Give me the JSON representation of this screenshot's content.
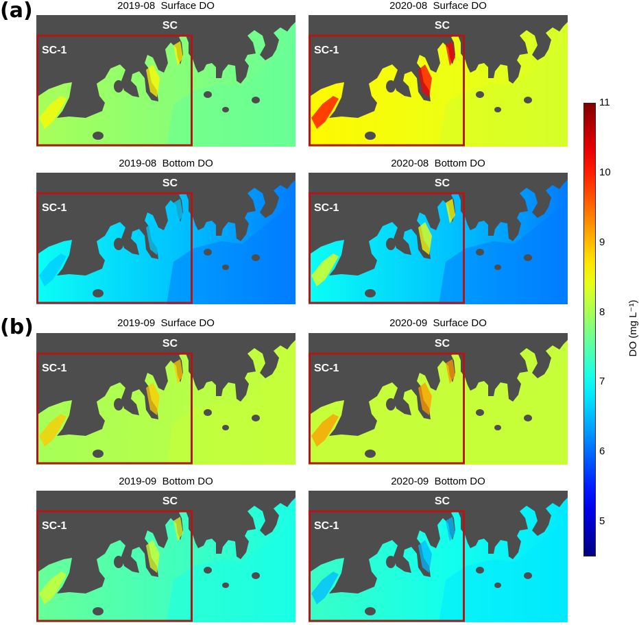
{
  "chart_data": {
    "type": "heatmap",
    "section_labels": [
      "(a)",
      "(b)"
    ],
    "region_labels": {
      "full_domain": "SC",
      "subregion": "SC-1"
    },
    "panels": [
      {
        "section": "(a)",
        "title": "2019-08  Surface DO"
      },
      {
        "section": "(a)",
        "title": "2020-08  Surface DO"
      },
      {
        "section": "(a)",
        "title": "2019-08  Bottom DO"
      },
      {
        "section": "(a)",
        "title": "2020-08  Bottom DO"
      },
      {
        "section": "(b)",
        "title": "2019-09  Surface DO"
      },
      {
        "section": "(b)",
        "title": "2020-09  Surface DO"
      },
      {
        "section": "(b)",
        "title": "2019-09  Bottom DO"
      },
      {
        "section": "(b)",
        "title": "2020-09  Bottom DO"
      }
    ],
    "colorbar": {
      "label": "DO (mg L⁻¹)",
      "ticks": [
        5,
        6,
        7,
        8,
        9,
        10,
        11
      ],
      "range": [
        4.5,
        11
      ],
      "colormap": "jet"
    },
    "land_color": "#4d4d4d",
    "subregion_box_color": "#b01818"
  }
}
